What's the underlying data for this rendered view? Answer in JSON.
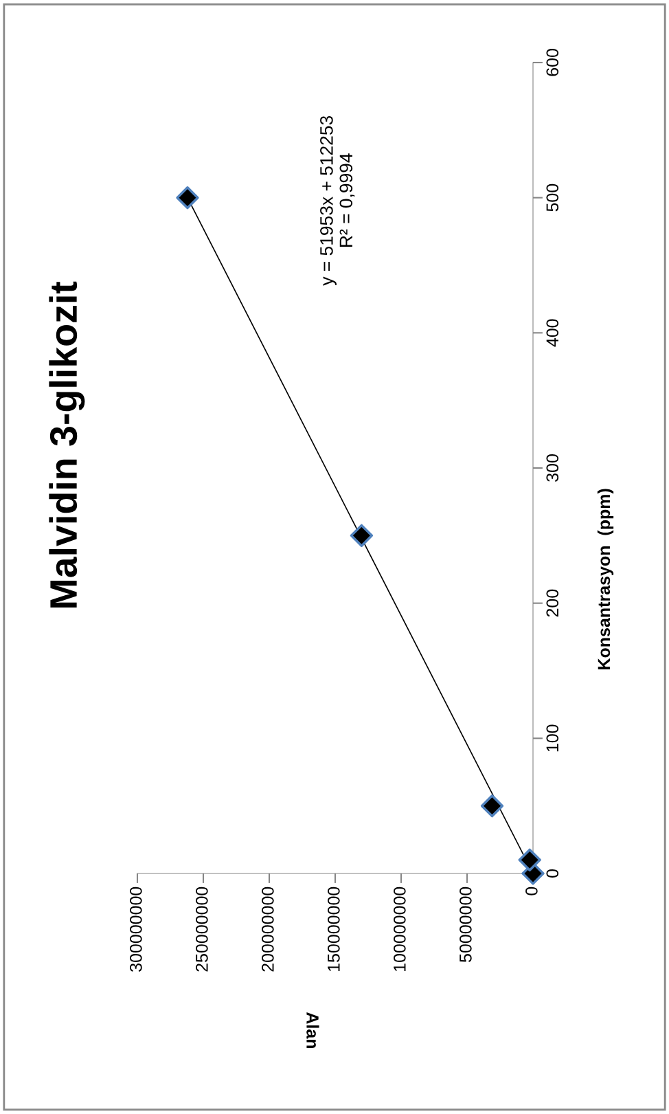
{
  "chart_data": {
    "type": "scatter",
    "title": "Malvidin 3-glikozit",
    "ylabel": "Konsantrasyon  (ppm)",
    "x": [
      0,
      2500000,
      31000000,
      130000000,
      262000000
    ],
    "series": [
      {
        "marker": "diamond",
        "color": "#000000",
        "values": [
          0,
          10,
          50,
          250,
          500
        ]
      },
      {
        "type": "line",
        "color": "#000000",
        "x": [
          0,
          262000000
        ],
        "values": [
          0,
          500
        ]
      }
    ],
    "xlim": [
      300000000,
      0
    ],
    "xticks": [
      0,
      50000000,
      100000000,
      150000000,
      200000000,
      250000000,
      300000000
    ],
    "ylim": [
      0,
      600
    ],
    "yticks": [
      0,
      100,
      200,
      300,
      400,
      500,
      600
    ],
    "grid": false,
    "legend": false,
    "annotations": [
      "y = 51953x + 512253\nR² = 0,9994",
      "Alan"
    ]
  }
}
